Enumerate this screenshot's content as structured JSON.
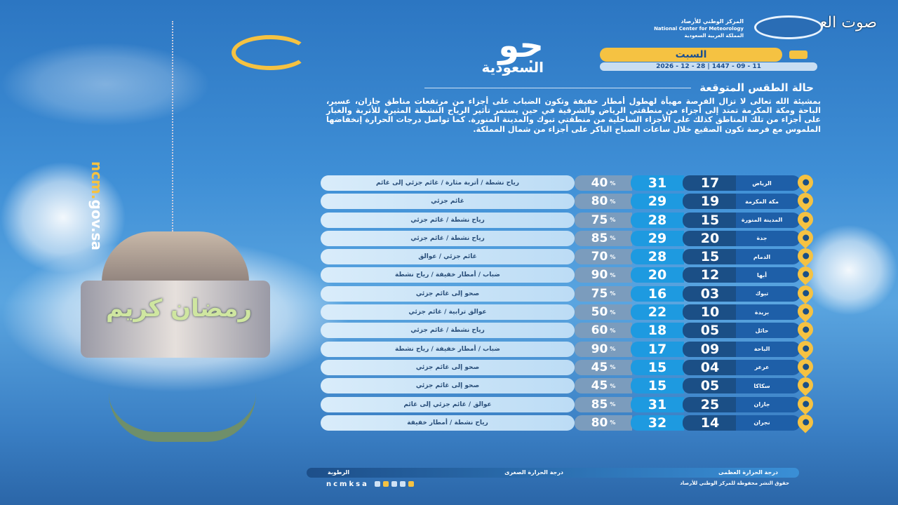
{
  "watermark": "صوت العرب",
  "org": {
    "ar": "المركز الوطني للأرصاد",
    "en": "National Center for Meteorology",
    "country": "المملكة العربية السعودية"
  },
  "brand": {
    "title": "جو",
    "subtitle": "السعودية"
  },
  "day": "السبت",
  "date": "2026 - 12 - 28  |  1447 - 09 - 11",
  "section_title": "حالة الطقس المتوقعة",
  "paragraph": "بمشيئة الله تعالى لا تزال الفرصة مهيأة لهطول أمطار خفيفة وتكون الضباب على أجزاء من مرتفعات مناطق جازان، عسير، الباحة ومكة المكرمة تمتد إلى أجزاء من منطقتي الرياض والشرقية في حين يستمر تأثير الرياح النشطة المثيرة للأتربة والغبار على أجزاء من تلك المناطق كذلك على الأجزاء الساحلية من منطقتي تبوك والمدينة المنورة. كما تواصل درجات الحرارة إنخفاضها الملموس مع فرصة تكون الصقيع خلال ساعات الصباح الباكر على أجزاء من شمال المملكة.",
  "website": {
    "a": "ncm.",
    "b": "gov.sa"
  },
  "lantern_text": "رمضان كريم",
  "humidity_unit": "%",
  "rows": [
    {
      "city": "الرياض",
      "min": "17",
      "max": "31",
      "humidity": "40",
      "desc": "رياح نشطة / أتربة مثارة / غائم جزئي إلى غائم"
    },
    {
      "city": "مكة المكرمة",
      "min": "19",
      "max": "29",
      "humidity": "80",
      "desc": "غائم جزئي"
    },
    {
      "city": "المدينة المنورة",
      "min": "15",
      "max": "28",
      "humidity": "75",
      "desc": "رياح نشطة / غائم جزئي"
    },
    {
      "city": "جدة",
      "min": "20",
      "max": "29",
      "humidity": "85",
      "desc": "رياح نشطة / غائم جزئي"
    },
    {
      "city": "الدمام",
      "min": "15",
      "max": "28",
      "humidity": "70",
      "desc": "غائم جزئي / عوالق"
    },
    {
      "city": "أبها",
      "min": "12",
      "max": "20",
      "humidity": "90",
      "desc": "ضباب / أمطار خفيفة / رياح نشطة"
    },
    {
      "city": "تبوك",
      "min": "03",
      "max": "16",
      "humidity": "75",
      "desc": "صحو إلى غائم جزئي"
    },
    {
      "city": "بريدة",
      "min": "10",
      "max": "22",
      "humidity": "50",
      "desc": "عوالق ترابية / غائم جزئي"
    },
    {
      "city": "حائل",
      "min": "05",
      "max": "18",
      "humidity": "60",
      "desc": "رياح نشطة / غائم جزئي"
    },
    {
      "city": "الباحة",
      "min": "09",
      "max": "17",
      "humidity": "90",
      "desc": "ضباب / أمطار خفيفة / رياح نشطة"
    },
    {
      "city": "عرعر",
      "min": "04",
      "max": "15",
      "humidity": "45",
      "desc": "صحو إلى غائم جزئي"
    },
    {
      "city": "سكاكا",
      "min": "05",
      "max": "15",
      "humidity": "45",
      "desc": "صحو إلى غائم جزئي"
    },
    {
      "city": "جازان",
      "min": "25",
      "max": "31",
      "humidity": "85",
      "desc": "عوالق / غائم جزئي إلى غائم"
    },
    {
      "city": "نجران",
      "min": "14",
      "max": "32",
      "humidity": "80",
      "desc": "رياح نشطة / أمطار خفيفة"
    }
  ],
  "legend": {
    "max": "درجة الحرارة العظمى",
    "min": "درجة الحرارة الصغرى",
    "humidity": "الرطوبة"
  },
  "footer": {
    "handle": "ncmksa",
    "rights": "حقوق النشر محفوظة للمركز الوطني للأرصاد"
  },
  "colors": {
    "accent": "#f5c242",
    "min_bg": "#1b4f86",
    "max_bg": "#1e9ae0",
    "humidity_bg": "#7b9cbd"
  }
}
